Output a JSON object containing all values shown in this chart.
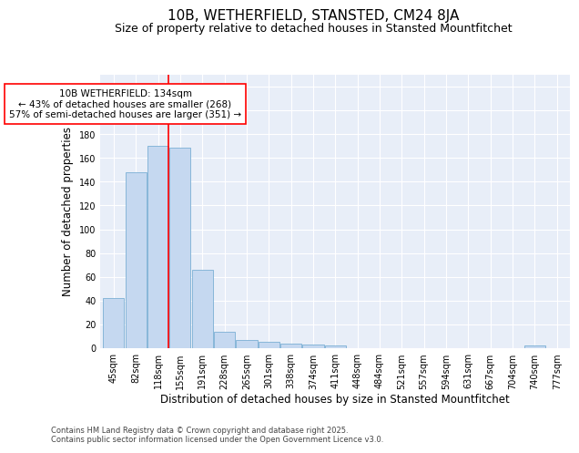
{
  "title": "10B, WETHERFIELD, STANSTED, CM24 8JA",
  "subtitle": "Size of property relative to detached houses in Stansted Mountfitchet",
  "xlabel": "Distribution of detached houses by size in Stansted Mountfitchet",
  "ylabel": "Number of detached properties",
  "bar_color": "#c5d8f0",
  "bar_edge_color": "#7bafd4",
  "background_color": "#e8eef8",
  "categories": [
    "45sqm",
    "82sqm",
    "118sqm",
    "155sqm",
    "191sqm",
    "228sqm",
    "265sqm",
    "301sqm",
    "338sqm",
    "374sqm",
    "411sqm",
    "448sqm",
    "484sqm",
    "521sqm",
    "557sqm",
    "594sqm",
    "631sqm",
    "667sqm",
    "704sqm",
    "740sqm",
    "777sqm"
  ],
  "values": [
    42,
    148,
    170,
    169,
    66,
    14,
    7,
    5,
    4,
    3,
    2,
    0,
    0,
    0,
    0,
    0,
    0,
    0,
    0,
    2,
    0
  ],
  "ylim": [
    0,
    230
  ],
  "yticks": [
    0,
    20,
    40,
    60,
    80,
    100,
    120,
    140,
    160,
    180,
    200,
    220
  ],
  "red_line_x": 2.48,
  "annotation_text": "10B WETHERFIELD: 134sqm\n← 43% of detached houses are smaller (268)\n57% of semi-detached houses are larger (351) →",
  "footer_line1": "Contains HM Land Registry data © Crown copyright and database right 2025.",
  "footer_line2": "Contains public sector information licensed under the Open Government Licence v3.0.",
  "title_fontsize": 11,
  "subtitle_fontsize": 9,
  "axis_label_fontsize": 8.5,
  "tick_fontsize": 7,
  "annotation_fontsize": 7.5,
  "footer_fontsize": 6
}
